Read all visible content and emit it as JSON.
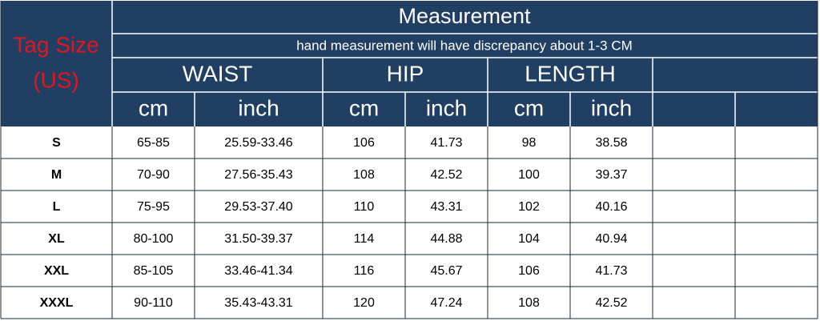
{
  "header": {
    "tag_size": [
      "Tag Size",
      "(US)"
    ],
    "title": "Measurement",
    "subtitle": "hand measurement will have discrepancy about 1-3 CM",
    "groups": [
      "WAIST",
      "HIP",
      "LENGTH"
    ],
    "units": [
      "cm",
      "inch",
      "cm",
      "inch",
      "cm",
      "inch"
    ]
  },
  "table": {
    "rows": [
      [
        "S",
        "65-85",
        "25.59-33.46",
        "106",
        "41.73",
        "98",
        "38.58"
      ],
      [
        "M",
        "70-90",
        "27.56-35.43",
        "108",
        "42.52",
        "100",
        "39.37"
      ],
      [
        "L",
        "75-95",
        "29.53-37.40",
        "110",
        "43.31",
        "102",
        "40.16"
      ],
      [
        "XL",
        "80-100",
        "31.50-39.37",
        "114",
        "44.88",
        "104",
        "40.94"
      ],
      [
        "XXL",
        "85-105",
        "33.46-41.34",
        "116",
        "45.67",
        "106",
        "41.73"
      ],
      [
        "XXXL",
        "90-110",
        "35.43-43.31",
        "120",
        "47.24",
        "108",
        "42.52"
      ]
    ]
  }
}
